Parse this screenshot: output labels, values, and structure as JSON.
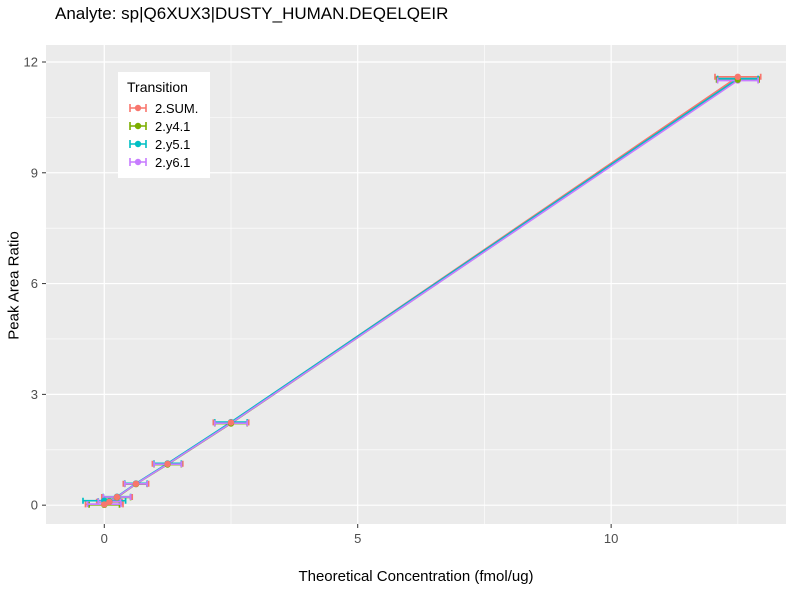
{
  "page": {
    "title": "Analyte: sp|Q6XUX3|DUSTY_HUMAN.DEQELQEIR"
  },
  "chart_data": {
    "type": "scatter",
    "title": "Analyte: sp|Q6XUX3|DUSTY_HUMAN.DEQELQEIR",
    "xlabel": "Theoretical Concentration (fmol/ug)",
    "ylabel": "Peak Area Ratio",
    "xlim": [
      -1.15,
      13.45
    ],
    "ylim": [
      -0.51,
      12.46
    ],
    "xticks": [
      0,
      5,
      10
    ],
    "yticks": [
      0,
      3,
      6,
      9,
      12
    ],
    "x_minor": [
      2.5,
      7.5,
      12.5
    ],
    "y_minor": [
      1.5,
      4.5,
      7.5,
      10.5
    ],
    "grid": true,
    "panel_bg": "#EBEBEB",
    "grid_color": "#FFFFFF",
    "tick_label_color": "#4D4D4D",
    "legend": {
      "title": "Transition",
      "position": "top-left-inside"
    },
    "x": [
      0,
      0.1,
      0.25,
      0.625,
      1.25,
      2.5,
      12.5
    ],
    "series": [
      {
        "name": "2.SUM.",
        "color": "#F8766D",
        "y": [
          0.02,
          0.09,
          0.22,
          0.58,
          1.12,
          2.24,
          11.6
        ],
        "xerr": [
          0.37,
          0.25,
          0.3,
          0.25,
          0.3,
          0.35,
          0.45
        ]
      },
      {
        "name": "2.y4.1",
        "color": "#7CAE00",
        "y": [
          0.01,
          0.09,
          0.21,
          0.57,
          1.1,
          2.21,
          11.52
        ],
        "xerr": [
          0.3,
          0.22,
          0.27,
          0.22,
          0.27,
          0.32,
          0.42
        ]
      },
      {
        "name": "2.y5.1",
        "color": "#00BFC4",
        "y": [
          0.12,
          0.11,
          0.23,
          0.59,
          1.13,
          2.25,
          11.55
        ],
        "xerr": [
          0.42,
          0.22,
          0.27,
          0.22,
          0.27,
          0.32,
          0.4
        ]
      },
      {
        "name": "2.y6.1",
        "color": "#C77CFF",
        "y": [
          0.03,
          0.1,
          0.22,
          0.575,
          1.11,
          2.22,
          11.5
        ],
        "xerr": [
          0.33,
          0.22,
          0.27,
          0.22,
          0.27,
          0.32,
          0.4
        ]
      }
    ]
  }
}
